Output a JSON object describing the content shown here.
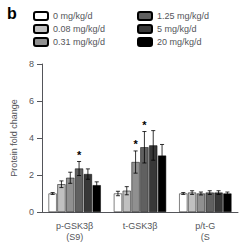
{
  "chart_data": {
    "type": "bar",
    "title": "b",
    "ylabel": "Protein fold change",
    "categories": [
      "p-GSK3β\n(S9)",
      "t-GSK3β",
      "p/t-G\n(S"
    ],
    "series": [
      {
        "name": "0 mg/kg/d",
        "color": "#ffffff",
        "values": [
          1.0,
          1.0,
          1.0
        ],
        "errors": [
          0.05,
          0.12,
          0.05
        ]
      },
      {
        "name": "0.08 mg/kg/d",
        "color": "#c0c0c0",
        "values": [
          1.5,
          1.15,
          1.05
        ],
        "errors": [
          0.18,
          0.22,
          0.1
        ]
      },
      {
        "name": "0.31 mg/kg/d",
        "color": "#909090",
        "values": [
          1.85,
          2.7,
          1.0
        ],
        "errors": [
          0.3,
          0.6,
          0.08
        ]
      },
      {
        "name": "1.25 mg/kg/d",
        "color": "#606060",
        "values": [
          2.35,
          3.5,
          1.05
        ],
        "errors": [
          0.38,
          0.85,
          0.1
        ]
      },
      {
        "name": "5 mg/kg/d",
        "color": "#383838",
        "values": [
          2.05,
          3.6,
          1.05
        ],
        "errors": [
          0.28,
          0.8,
          0.1
        ]
      },
      {
        "name": "20 mg/kg/d",
        "color": "#000000",
        "values": [
          1.45,
          3.05,
          1.0
        ],
        "errors": [
          0.18,
          0.6,
          0.08
        ]
      }
    ],
    "annotations": [
      {
        "text": "*",
        "category": "p-GSK3β\n(S9)",
        "series": "1.25 mg/kg/d"
      },
      {
        "text": "*",
        "category": "t-GSK3β",
        "series": "0.31 mg/kg/d"
      },
      {
        "text": "*",
        "category": "t-GSK3β",
        "series": "1.25 mg/kg/d"
      }
    ],
    "ylim": [
      0,
      8
    ],
    "yticks": [
      0,
      2,
      4,
      6,
      8
    ],
    "grid": false,
    "legend": "top"
  }
}
